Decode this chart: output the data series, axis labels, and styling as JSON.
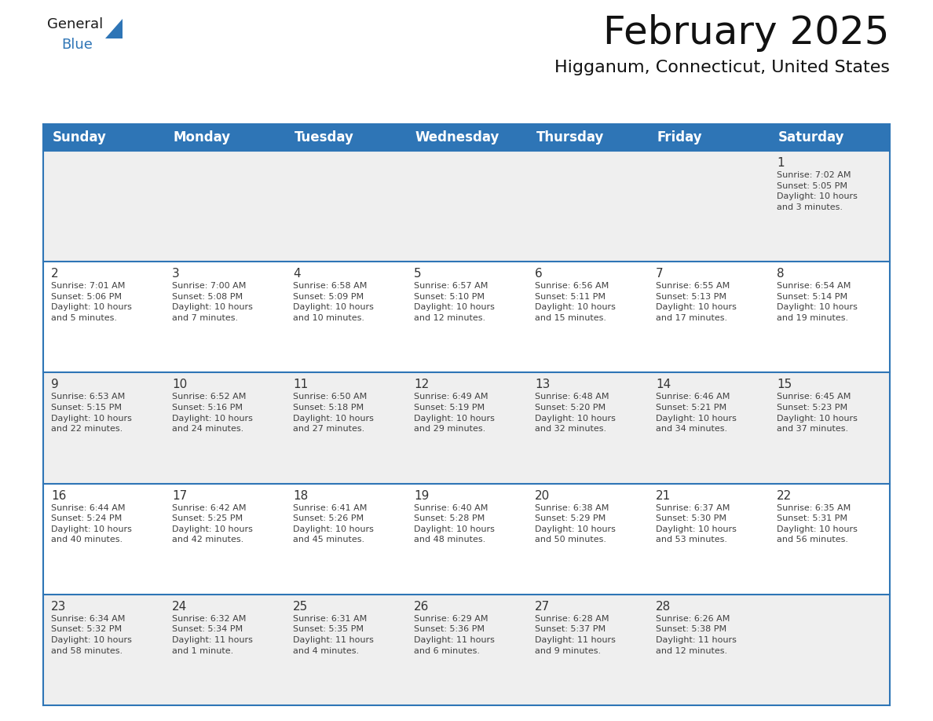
{
  "title": "February 2025",
  "subtitle": "Higganum, Connecticut, United States",
  "header_bg_color": "#2E75B6",
  "header_text_color": "#FFFFFF",
  "cell_bg_gray": "#EFEFEF",
  "cell_bg_white": "#FFFFFF",
  "text_color": "#404040",
  "day_number_color": "#333333",
  "border_color": "#2E75B6",
  "days_of_week": [
    "Sunday",
    "Monday",
    "Tuesday",
    "Wednesday",
    "Thursday",
    "Friday",
    "Saturday"
  ],
  "calendar_data": [
    [
      {
        "day": null,
        "info": ""
      },
      {
        "day": null,
        "info": ""
      },
      {
        "day": null,
        "info": ""
      },
      {
        "day": null,
        "info": ""
      },
      {
        "day": null,
        "info": ""
      },
      {
        "day": null,
        "info": ""
      },
      {
        "day": "1",
        "info": "Sunrise: 7:02 AM\nSunset: 5:05 PM\nDaylight: 10 hours\nand 3 minutes."
      }
    ],
    [
      {
        "day": "2",
        "info": "Sunrise: 7:01 AM\nSunset: 5:06 PM\nDaylight: 10 hours\nand 5 minutes."
      },
      {
        "day": "3",
        "info": "Sunrise: 7:00 AM\nSunset: 5:08 PM\nDaylight: 10 hours\nand 7 minutes."
      },
      {
        "day": "4",
        "info": "Sunrise: 6:58 AM\nSunset: 5:09 PM\nDaylight: 10 hours\nand 10 minutes."
      },
      {
        "day": "5",
        "info": "Sunrise: 6:57 AM\nSunset: 5:10 PM\nDaylight: 10 hours\nand 12 minutes."
      },
      {
        "day": "6",
        "info": "Sunrise: 6:56 AM\nSunset: 5:11 PM\nDaylight: 10 hours\nand 15 minutes."
      },
      {
        "day": "7",
        "info": "Sunrise: 6:55 AM\nSunset: 5:13 PM\nDaylight: 10 hours\nand 17 minutes."
      },
      {
        "day": "8",
        "info": "Sunrise: 6:54 AM\nSunset: 5:14 PM\nDaylight: 10 hours\nand 19 minutes."
      }
    ],
    [
      {
        "day": "9",
        "info": "Sunrise: 6:53 AM\nSunset: 5:15 PM\nDaylight: 10 hours\nand 22 minutes."
      },
      {
        "day": "10",
        "info": "Sunrise: 6:52 AM\nSunset: 5:16 PM\nDaylight: 10 hours\nand 24 minutes."
      },
      {
        "day": "11",
        "info": "Sunrise: 6:50 AM\nSunset: 5:18 PM\nDaylight: 10 hours\nand 27 minutes."
      },
      {
        "day": "12",
        "info": "Sunrise: 6:49 AM\nSunset: 5:19 PM\nDaylight: 10 hours\nand 29 minutes."
      },
      {
        "day": "13",
        "info": "Sunrise: 6:48 AM\nSunset: 5:20 PM\nDaylight: 10 hours\nand 32 minutes."
      },
      {
        "day": "14",
        "info": "Sunrise: 6:46 AM\nSunset: 5:21 PM\nDaylight: 10 hours\nand 34 minutes."
      },
      {
        "day": "15",
        "info": "Sunrise: 6:45 AM\nSunset: 5:23 PM\nDaylight: 10 hours\nand 37 minutes."
      }
    ],
    [
      {
        "day": "16",
        "info": "Sunrise: 6:44 AM\nSunset: 5:24 PM\nDaylight: 10 hours\nand 40 minutes."
      },
      {
        "day": "17",
        "info": "Sunrise: 6:42 AM\nSunset: 5:25 PM\nDaylight: 10 hours\nand 42 minutes."
      },
      {
        "day": "18",
        "info": "Sunrise: 6:41 AM\nSunset: 5:26 PM\nDaylight: 10 hours\nand 45 minutes."
      },
      {
        "day": "19",
        "info": "Sunrise: 6:40 AM\nSunset: 5:28 PM\nDaylight: 10 hours\nand 48 minutes."
      },
      {
        "day": "20",
        "info": "Sunrise: 6:38 AM\nSunset: 5:29 PM\nDaylight: 10 hours\nand 50 minutes."
      },
      {
        "day": "21",
        "info": "Sunrise: 6:37 AM\nSunset: 5:30 PM\nDaylight: 10 hours\nand 53 minutes."
      },
      {
        "day": "22",
        "info": "Sunrise: 6:35 AM\nSunset: 5:31 PM\nDaylight: 10 hours\nand 56 minutes."
      }
    ],
    [
      {
        "day": "23",
        "info": "Sunrise: 6:34 AM\nSunset: 5:32 PM\nDaylight: 10 hours\nand 58 minutes."
      },
      {
        "day": "24",
        "info": "Sunrise: 6:32 AM\nSunset: 5:34 PM\nDaylight: 11 hours\nand 1 minute."
      },
      {
        "day": "25",
        "info": "Sunrise: 6:31 AM\nSunset: 5:35 PM\nDaylight: 11 hours\nand 4 minutes."
      },
      {
        "day": "26",
        "info": "Sunrise: 6:29 AM\nSunset: 5:36 PM\nDaylight: 11 hours\nand 6 minutes."
      },
      {
        "day": "27",
        "info": "Sunrise: 6:28 AM\nSunset: 5:37 PM\nDaylight: 11 hours\nand 9 minutes."
      },
      {
        "day": "28",
        "info": "Sunrise: 6:26 AM\nSunset: 5:38 PM\nDaylight: 11 hours\nand 12 minutes."
      },
      {
        "day": null,
        "info": ""
      }
    ]
  ],
  "logo_general_color": "#1a1a1a",
  "logo_blue_color": "#2E75B6",
  "title_fontsize": 36,
  "subtitle_fontsize": 16,
  "header_fontsize": 12,
  "day_num_fontsize": 11,
  "cell_text_fontsize": 8
}
